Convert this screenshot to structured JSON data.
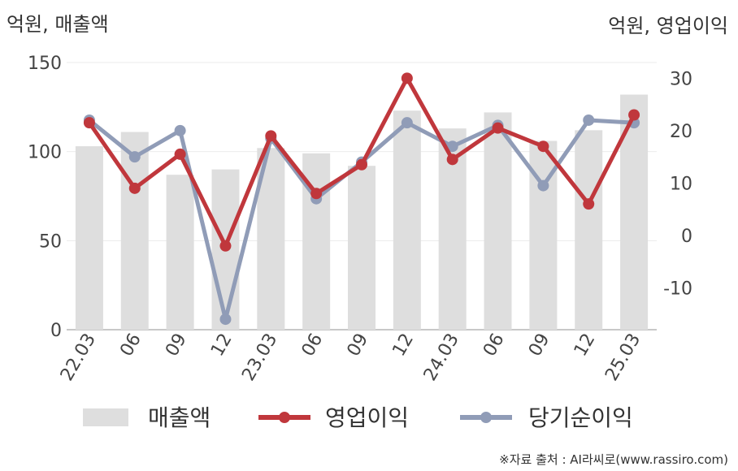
{
  "chart_data": {
    "type": "bar+line",
    "categories": [
      "22.03",
      "06",
      "09",
      "12",
      "23.03",
      "06",
      "09",
      "12",
      "24.03",
      "06",
      "09",
      "12",
      "25.03"
    ],
    "left_axis": {
      "label": "억원, 매출액",
      "ylim": [
        0,
        150
      ],
      "ticks": [
        0,
        50,
        100,
        150
      ]
    },
    "right_axis": {
      "label": "억원, 영업이익",
      "ylim": [
        -18,
        33
      ],
      "ticks": [
        -10,
        0,
        10,
        20,
        30
      ]
    },
    "series": [
      {
        "name": "매출액",
        "kind": "bar",
        "axis": "left",
        "color": "#dedede",
        "values": [
          103,
          111,
          87,
          90,
          102,
          99,
          92,
          123,
          113,
          122,
          106,
          112,
          132
        ]
      },
      {
        "name": "영업이익",
        "kind": "line",
        "axis": "right",
        "color": "#c0373c",
        "values": [
          21.5,
          9.0,
          15.5,
          -2.0,
          19.0,
          8.0,
          13.5,
          30.0,
          14.5,
          20.5,
          17.0,
          6.0,
          23.0
        ]
      },
      {
        "name": "당기순이익",
        "kind": "line",
        "axis": "right",
        "color": "#909cb7",
        "values": [
          22.0,
          15.0,
          20.0,
          -16.0,
          18.5,
          7.0,
          14.0,
          21.5,
          17.0,
          21.0,
          9.5,
          22.0,
          21.5
        ]
      }
    ],
    "grid": true,
    "legend_position": "bottom"
  },
  "source_note": "※자료 출처 : AI라씨로(www.rassiro.com)"
}
